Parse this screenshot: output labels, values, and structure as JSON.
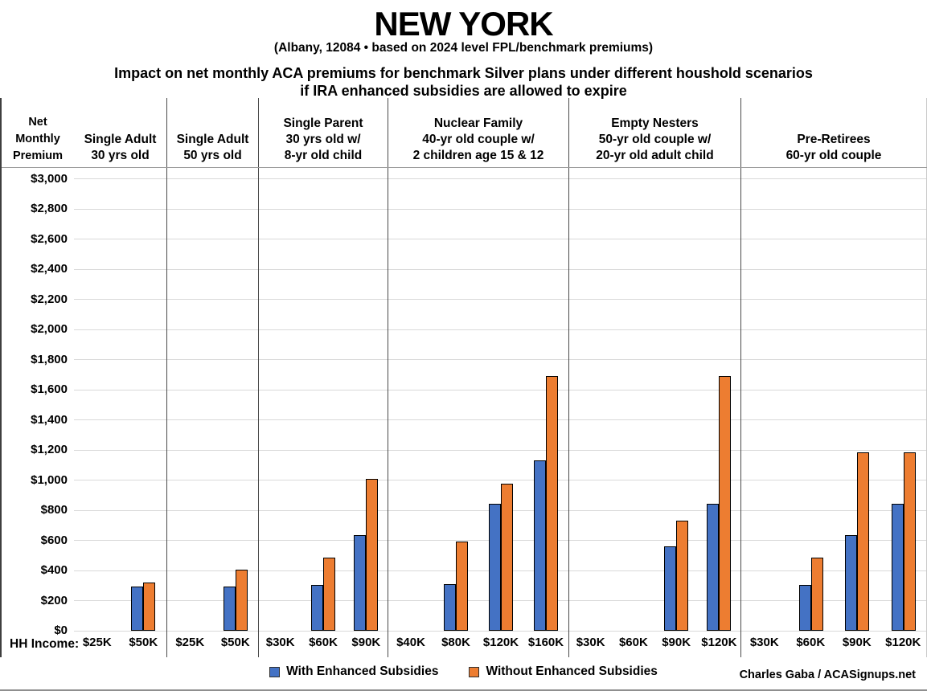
{
  "page": {
    "title": "NEW YORK",
    "subtitle": "(Albany, 12084 • based on 2024 level FPL/benchmark premiums)",
    "heading_line1": "Impact on net monthly ACA premiums for benchmark Silver plans under different houshold scenarios",
    "heading_line2": "if IRA enhanced subsidies are allowed to expire",
    "hh_income_label": "HH Income:",
    "credit": "Charles Gaba / ACASignups.net"
  },
  "legend": {
    "items": [
      {
        "label": "With Enhanced Subsidies",
        "color": "#4472c4"
      },
      {
        "label": "Without Enhanced Subsidies",
        "color": "#ed7d31"
      }
    ]
  },
  "chart_data": {
    "type": "bar",
    "title": "NEW YORK",
    "subtitle": "(Albany, 12084 • based on 2024 level FPL/benchmark premiums)",
    "ylabel": "Net Monthly Premium",
    "xlabel": "HH Income",
    "ylim": [
      0,
      3000
    ],
    "ytick_step": 200,
    "y_tick_labels": [
      "$3,000",
      "$2,800",
      "$2,600",
      "$2,400",
      "$2,200",
      "$2,000",
      "$1,800",
      "$1,600",
      "$1,400",
      "$1,200",
      "$1,000",
      "$800",
      "$600",
      "$400",
      "$200",
      "$0"
    ],
    "grid": true,
    "legend_position": "bottom",
    "series_names": [
      "With Enhanced Subsidies",
      "Without Enhanced Subsidies"
    ],
    "colors": {
      "with_enhanced": "#4472c4",
      "without_enhanced": "#ed7d31"
    },
    "panels": [
      {
        "scenario_lines": [
          "Single Adult",
          "30 yrs old"
        ],
        "categories": [
          "$25K",
          "$50K"
        ],
        "with_enhanced": [
          0,
          295
        ],
        "without_enhanced": [
          0,
          320
        ]
      },
      {
        "scenario_lines": [
          "Single Adult",
          "50 yrs old"
        ],
        "categories": [
          "$25K",
          "$50K"
        ],
        "with_enhanced": [
          0,
          295
        ],
        "without_enhanced": [
          0,
          405
        ]
      },
      {
        "scenario_lines": [
          "Single Parent",
          "30 yrs old w/",
          "8-yr old child"
        ],
        "categories": [
          "$30K",
          "$60K",
          "$90K"
        ],
        "with_enhanced": [
          0,
          305,
          635
        ],
        "without_enhanced": [
          0,
          485,
          1010
        ]
      },
      {
        "scenario_lines": [
          "Nuclear Family",
          "40-yr old couple w/",
          "2 children age 15 & 12"
        ],
        "categories": [
          "$40K",
          "$80K",
          "$120K",
          "$160K"
        ],
        "with_enhanced": [
          0,
          310,
          845,
          1130
        ],
        "without_enhanced": [
          0,
          590,
          975,
          1690
        ]
      },
      {
        "scenario_lines": [
          "Empty Nesters",
          "50-yr old couple w/",
          "20-yr old adult child"
        ],
        "categories": [
          "$30K",
          "$60K",
          "$90K",
          "$120K"
        ],
        "with_enhanced": [
          0,
          0,
          560,
          845
        ],
        "without_enhanced": [
          0,
          0,
          730,
          1690
        ]
      },
      {
        "scenario_lines": [
          "Pre-Retirees",
          "60-yr old couple"
        ],
        "categories": [
          "$30K",
          "$60K",
          "$90K",
          "$120K"
        ],
        "with_enhanced": [
          0,
          305,
          635,
          845
        ],
        "without_enhanced": [
          0,
          485,
          1185,
          1185
        ]
      }
    ]
  }
}
